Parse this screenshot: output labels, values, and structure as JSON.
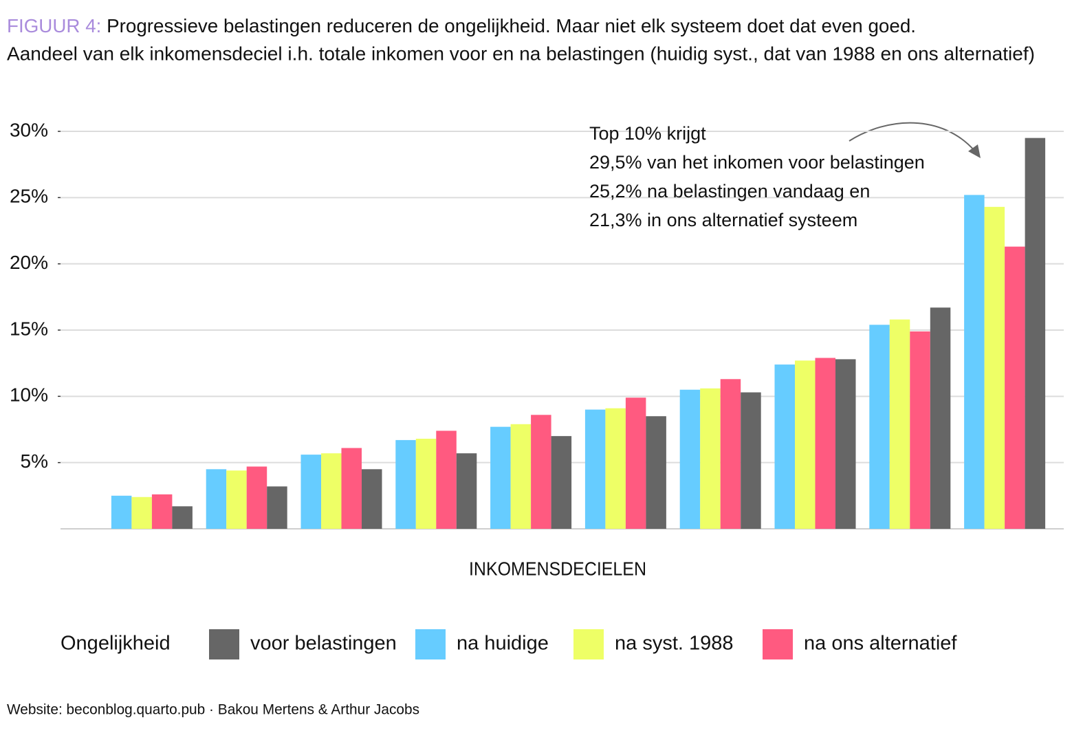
{
  "chart_data": {
    "type": "bar",
    "title_prefix": "FIGUUR 4:",
    "title": "Progressieve belastingen reduceren de ongelijkheid. Maar niet elk systeem doet dat even goed.",
    "subtitle": "Aandeel van elk inkomensdeciel i.h. totale inkomen voor en na belastingen (huidig syst., dat van 1988 en ons alternatief)",
    "x_label": "INKOMENSDECIELEN",
    "legend_title": "Ongelijkheid",
    "annotation": [
      "Top 10% krijgt",
      "29,5% van het inkomen voor belastingen",
      "25,2% na belastingen vandaag en",
      "21,3% in ons alternatief systeem"
    ],
    "source": "Website: beconblog.quarto.pub · Bakou Mertens & Arthur Jacobs",
    "categories": [
      null,
      null,
      null,
      null,
      null,
      null,
      null,
      null,
      null,
      null
    ],
    "series": [
      {
        "name": "na huidige",
        "color": "#66ccff",
        "values": [
          2.5,
          4.5,
          5.6,
          6.7,
          7.7,
          9.0,
          10.5,
          12.4,
          15.4,
          25.2
        ]
      },
      {
        "name": "na syst. 1988",
        "color": "#eeff66",
        "values": [
          2.4,
          4.4,
          5.7,
          6.8,
          7.9,
          9.1,
          10.6,
          12.7,
          15.8,
          24.3
        ]
      },
      {
        "name": "na ons alternatief",
        "color": "#ff5a80",
        "values": [
          2.6,
          4.7,
          6.1,
          7.4,
          8.6,
          9.9,
          11.3,
          12.9,
          14.9,
          21.3
        ]
      },
      {
        "name": "voor belastingen",
        "color": "#666666",
        "values": [
          1.7,
          3.2,
          4.5,
          5.7,
          7.0,
          8.5,
          10.3,
          12.8,
          16.7,
          29.5
        ]
      }
    ],
    "ylim": [
      0,
      30
    ],
    "yticks": [
      {
        "value": 5,
        "label": "5%"
      },
      {
        "value": 10,
        "label": "10%"
      },
      {
        "value": 15,
        "label": "15%"
      },
      {
        "value": 20,
        "label": "20%"
      },
      {
        "value": 25,
        "label": "25%"
      },
      {
        "value": 30,
        "label": "30%"
      }
    ],
    "grid": true
  }
}
